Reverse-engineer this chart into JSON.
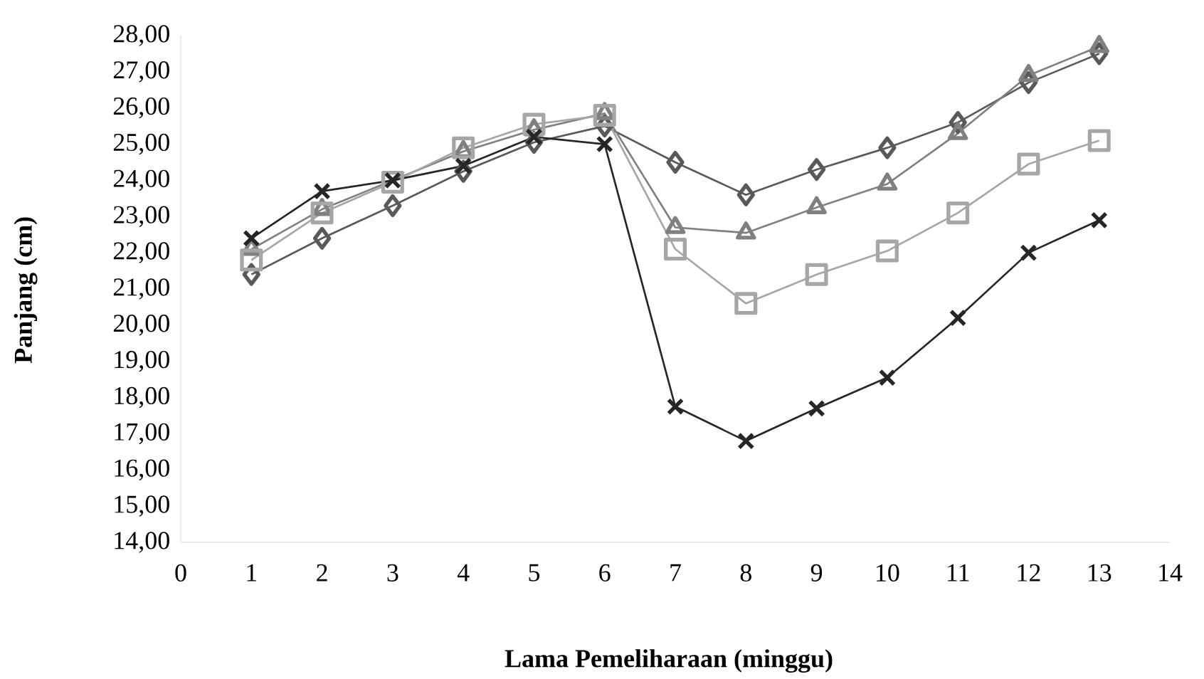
{
  "chart_data": {
    "type": "line",
    "xlabel": "Lama Pemeliharaan (minggu)",
    "ylabel": "Panjang (cm)",
    "x": [
      1,
      2,
      3,
      4,
      5,
      6,
      7,
      8,
      9,
      10,
      11,
      12,
      13
    ],
    "xlim": [
      0,
      14
    ],
    "xticks": [
      0,
      1,
      2,
      3,
      4,
      5,
      6,
      7,
      8,
      9,
      10,
      11,
      12,
      13,
      14
    ],
    "ylim": [
      14,
      28
    ],
    "yticks": [
      {
        "value": 14,
        "label": "14,00"
      },
      {
        "value": 15,
        "label": "15,00"
      },
      {
        "value": 16,
        "label": "16,00"
      },
      {
        "value": 17,
        "label": "17,00"
      },
      {
        "value": 18,
        "label": "18,00"
      },
      {
        "value": 19,
        "label": "19,00"
      },
      {
        "value": 20,
        "label": "20,00"
      },
      {
        "value": 21,
        "label": "21,00"
      },
      {
        "value": 22,
        "label": "22,00"
      },
      {
        "value": 23,
        "label": "23,00"
      },
      {
        "value": 24,
        "label": "24,00"
      },
      {
        "value": 25,
        "label": "25,00"
      },
      {
        "value": 26,
        "label": "26,00"
      },
      {
        "value": 27,
        "label": "27,00"
      },
      {
        "value": 28,
        "label": "28,00"
      }
    ],
    "line_style": "solid",
    "series": [
      {
        "color": "#595959",
        "marker": "diamond",
        "values": [
          21.4,
          22.4,
          23.3,
          24.25,
          25.05,
          25.5,
          24.5,
          23.6,
          24.3,
          24.9,
          25.6,
          26.7,
          27.5
        ]
      },
      {
        "color": "#808080",
        "marker": "triangle",
        "values": [
          22.1,
          23.2,
          null,
          24.8,
          25.4,
          25.85,
          22.7,
          22.55,
          23.25,
          23.9,
          25.3,
          26.9,
          27.7
        ]
      },
      {
        "color": "#a6a6a6",
        "marker": "square",
        "values": [
          21.8,
          23.1,
          23.95,
          24.9,
          25.55,
          25.8,
          22.1,
          20.6,
          21.4,
          22.05,
          23.1,
          24.45,
          25.1
        ]
      },
      {
        "color": "#262626",
        "marker": "cross",
        "values": [
          22.4,
          23.7,
          24.0,
          24.4,
          25.2,
          25.0,
          17.75,
          16.8,
          17.7,
          18.55,
          20.2,
          22.0,
          22.9
        ]
      }
    ]
  }
}
